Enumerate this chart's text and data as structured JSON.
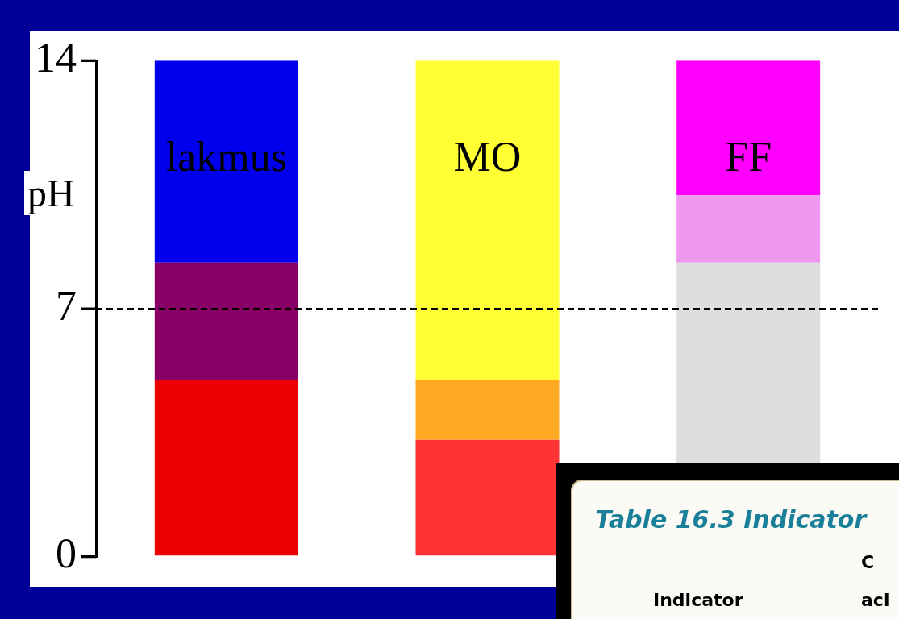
{
  "chart_data": {
    "type": "bar",
    "stacked": true,
    "categories": [
      "lakmus",
      "MO",
      "FF"
    ],
    "ylabel": "pH",
    "ylim": [
      0,
      14
    ],
    "yticks": [
      0,
      7,
      14
    ],
    "series": [
      {
        "colors": [
          "#ee0000",
          "#ff3333",
          "#dddddd"
        ],
        "values": [
          5,
          3.3,
          8.3
        ]
      },
      {
        "colors": [
          "#880066",
          "#ffaa22",
          "#ee99ee"
        ],
        "values": [
          3.3,
          1.7,
          1.9
        ]
      },
      {
        "colors": [
          "#0000ee",
          "#ffff33",
          "#ff00ff"
        ],
        "values": [
          5.7,
          9,
          3.8
        ]
      }
    ],
    "ref_lines": [
      {
        "axis": "y",
        "value": 7,
        "color": "#000000",
        "line_style": "dashed"
      }
    ],
    "grid": false,
    "legend": false,
    "tick_labels": "y",
    "annotations": [
      "Table 16.3 Indicator",
      "C",
      "Indicator",
      "aci"
    ]
  }
}
